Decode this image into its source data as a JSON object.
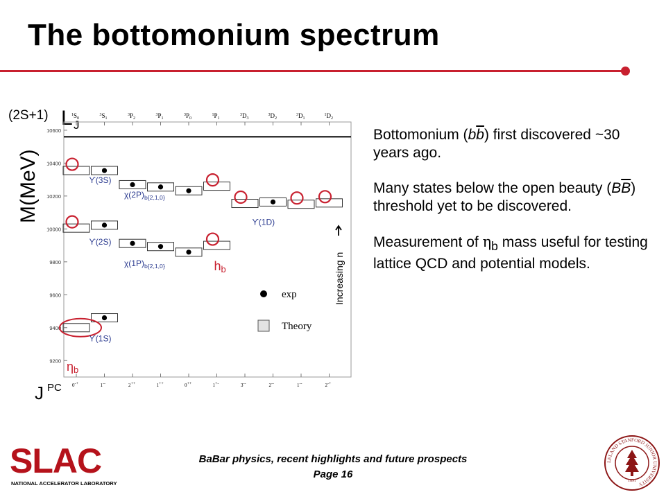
{
  "slide": {
    "title": "The bottomonium spectrum",
    "accent_color": "#c8202f"
  },
  "diagram": {
    "term_label_prefix": "(2S+1)",
    "term_label_main": "L",
    "term_label_sub": "J",
    "mass_axis_label": "M(MeV)",
    "jpc_label": "J",
    "jpc_superscript": "PC",
    "top_labels": [
      {
        "sup": "1",
        "main": "S",
        "sub": "0"
      },
      {
        "sup": "3",
        "main": "S",
        "sub": "1"
      },
      {
        "sup": "3",
        "main": "P",
        "sub": "2"
      },
      {
        "sup": "3",
        "main": "P",
        "sub": "1"
      },
      {
        "sup": "3",
        "main": "P",
        "sub": "0"
      },
      {
        "sup": "1",
        "main": "P",
        "sub": "1"
      },
      {
        "sup": "3",
        "main": "D",
        "sub": "3"
      },
      {
        "sup": "3",
        "main": "D",
        "sub": "2"
      },
      {
        "sup": "3",
        "main": "D",
        "sub": "1"
      },
      {
        "sup": "1",
        "main": "D",
        "sub": "2"
      }
    ],
    "bottom_labels": [
      "0-+",
      "1--",
      "2++",
      "1++",
      "0++",
      "1+-",
      "3--",
      "2--",
      "1--",
      "2-+"
    ],
    "y_ticks": [
      10600,
      10400,
      10200,
      10000,
      9800,
      9600,
      9400,
      9200
    ],
    "y_range": [
      9100,
      10650
    ],
    "threshold_mass": 10560,
    "state_labels": {
      "ups3s": "ϒ(3S)",
      "ups2s": "ϒ(2S)",
      "ups1s": "ϒ(1S)",
      "chi2p_main": "χ(2P)",
      "chi2p_sub": "b{2,1,0}",
      "chi1p_main": "χ(1P)",
      "chi1p_sub": "b{2,1,0}",
      "ups1d": "ϒ(1D)",
      "hb_main": "h",
      "hb_sub": "b",
      "etab_main": "η",
      "etab_sub": "b"
    },
    "increasing_label": "Increasing n",
    "legend": {
      "exp": "exp",
      "theory": "Theory"
    },
    "levels": [
      {
        "col": 0,
        "mass": 10355,
        "exp": false
      },
      {
        "col": 1,
        "mass": 10355,
        "exp": true
      },
      {
        "col": 2,
        "mass": 10269,
        "exp": true
      },
      {
        "col": 3,
        "mass": 10255,
        "exp": true
      },
      {
        "col": 4,
        "mass": 10232,
        "exp": true
      },
      {
        "col": 5,
        "mass": 10260,
        "exp": false
      },
      {
        "col": 6,
        "mass": 10155,
        "exp": false
      },
      {
        "col": 7,
        "mass": 10164,
        "exp": true
      },
      {
        "col": 8,
        "mass": 10150,
        "exp": false
      },
      {
        "col": 9,
        "mass": 10158,
        "exp": false
      },
      {
        "col": 0,
        "mass": 10005,
        "exp": false
      },
      {
        "col": 1,
        "mass": 10023,
        "exp": true
      },
      {
        "col": 2,
        "mass": 9912,
        "exp": true
      },
      {
        "col": 3,
        "mass": 9893,
        "exp": true
      },
      {
        "col": 4,
        "mass": 9859,
        "exp": true
      },
      {
        "col": 5,
        "mass": 9900,
        "exp": false
      },
      {
        "col": 0,
        "mass": 9400,
        "exp": false
      },
      {
        "col": 1,
        "mass": 9460,
        "exp": true
      }
    ],
    "predicted_circles": [
      {
        "col": 0,
        "mass": 10355
      },
      {
        "col": 5,
        "mass": 10260
      },
      {
        "col": 6,
        "mass": 10155
      },
      {
        "col": 8,
        "mass": 10150
      },
      {
        "col": 9,
        "mass": 10158
      },
      {
        "col": 0,
        "mass": 10005
      },
      {
        "col": 5,
        "mass": 9900
      }
    ],
    "etab_ellipse": {
      "col": 0,
      "mass": 9400
    }
  },
  "bullets": {
    "b1_a": "Bottomonium (",
    "b1_b": "b",
    "b1_bbar": "b",
    "b1_c": ") first discovered ~30 years ago.",
    "b2_a": "Many states below the open beauty (",
    "b2_B": "B",
    "b2_Bbar": "B",
    "b2_c": ") threshold yet to be discovered.",
    "b3_a": "Measurement of ",
    "b3_eta": "η",
    "b3_sub": "b",
    "b3_c": " mass useful for testing lattice QCD and potential models."
  },
  "footer": {
    "line1": "BaBar physics, recent highlights and future prospects",
    "line2": "Page 16"
  },
  "logo": {
    "text": "SLAC",
    "subtext": "NATIONAL ACCELERATOR LABORATORY",
    "color": "#b5121b"
  },
  "seal": {
    "ring_text": "LELAND STANFORD JUNIOR UNIVERSITY",
    "year": "1891",
    "color": "#8c1515"
  }
}
